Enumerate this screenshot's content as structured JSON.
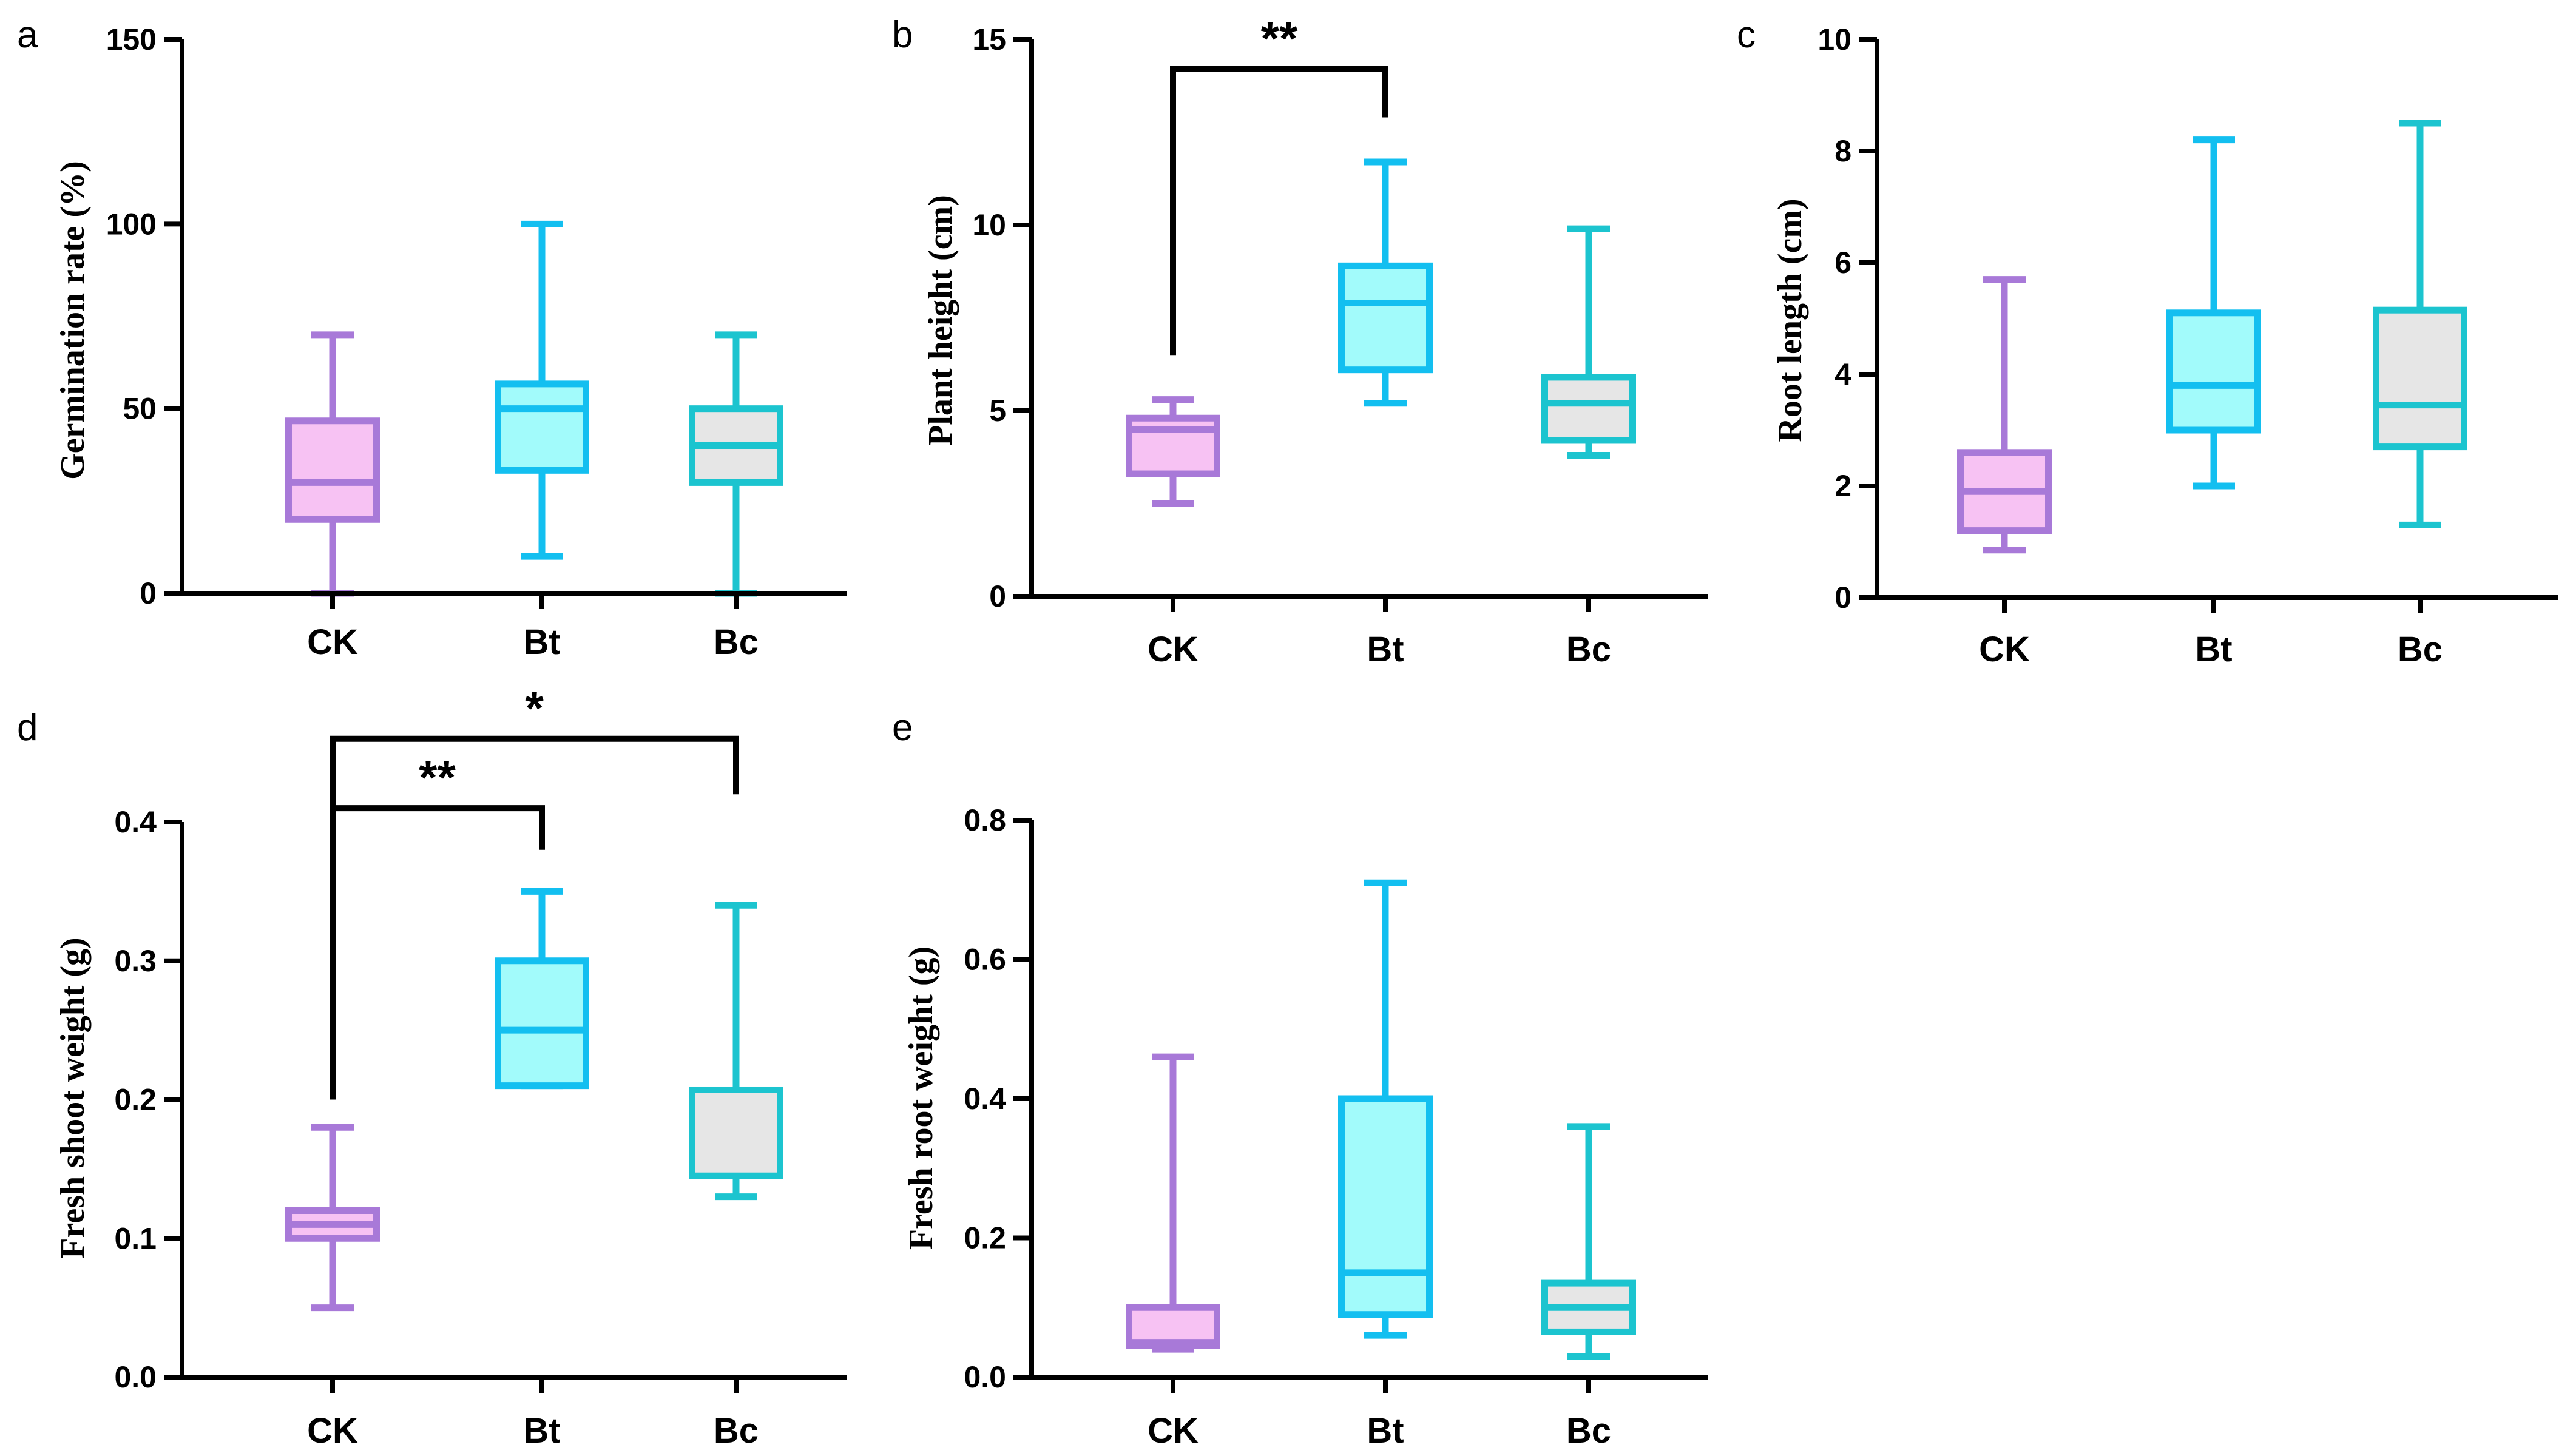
{
  "colors": {
    "CK": {
      "stroke": "#a879d8",
      "fill": "#f7c2f3"
    },
    "Bt": {
      "stroke": "#13bff0",
      "fill": "#a2fbfb"
    },
    "Bc": {
      "stroke": "#1cc4cf",
      "fill": "#e6e6e6"
    },
    "axis": "#000000"
  },
  "chart_data": [
    {
      "panel": "a",
      "type": "box",
      "ylabel": "Germination rate (%)",
      "ylim": [
        0,
        150
      ],
      "yticks": [
        0,
        50,
        100,
        150
      ],
      "categories": [
        "CK",
        "Bt",
        "Bc"
      ],
      "boxes": [
        {
          "name": "CK",
          "min": 0,
          "q1": 20,
          "median": 30,
          "q3": 46.7,
          "max": 70
        },
        {
          "name": "Bt",
          "min": 10,
          "q1": 33.3,
          "median": 50,
          "q3": 56.7,
          "max": 100
        },
        {
          "name": "Bc",
          "min": 0,
          "q1": 30,
          "median": 40,
          "q3": 50,
          "max": 70
        }
      ],
      "significance": []
    },
    {
      "panel": "b",
      "type": "box",
      "ylabel": "Plant height (cm)",
      "ylim": [
        0,
        15
      ],
      "yticks": [
        0,
        5,
        10,
        15
      ],
      "categories": [
        "CK",
        "Bt",
        "Bc"
      ],
      "boxes": [
        {
          "name": "CK",
          "min": 2.5,
          "q1": 3.3,
          "median": 4.5,
          "q3": 4.8,
          "max": 5.3
        },
        {
          "name": "Bt",
          "min": 5.2,
          "q1": 6.1,
          "median": 7.9,
          "q3": 8.9,
          "max": 11.7
        },
        {
          "name": "Bc",
          "min": 3.8,
          "q1": 4.2,
          "median": 5.2,
          "q3": 5.9,
          "max": 9.9
        }
      ],
      "significance": [
        {
          "from": "CK",
          "to": "Bt",
          "label": "**",
          "y": 14.2,
          "y_from": 6.5,
          "y_to": 12.9
        }
      ]
    },
    {
      "panel": "c",
      "type": "box",
      "ylabel": "Root length (cm)",
      "ylim": [
        0,
        10
      ],
      "yticks": [
        0,
        2,
        4,
        6,
        8,
        10
      ],
      "categories": [
        "CK",
        "Bt",
        "Bc"
      ],
      "boxes": [
        {
          "name": "CK",
          "min": 0.85,
          "q1": 1.2,
          "median": 1.9,
          "q3": 2.6,
          "max": 5.7
        },
        {
          "name": "Bt",
          "min": 2.0,
          "q1": 3.0,
          "median": 3.8,
          "q3": 5.1,
          "max": 8.2
        },
        {
          "name": "Bc",
          "min": 1.3,
          "q1": 2.7,
          "median": 3.45,
          "q3": 5.15,
          "max": 8.5
        }
      ],
      "significance": []
    },
    {
      "panel": "d",
      "type": "box",
      "ylabel": "Fresh shoot weight (g)",
      "ylim": [
        0,
        0.4
      ],
      "yticks": [
        0.0,
        0.1,
        0.2,
        0.3,
        0.4
      ],
      "tick_decimals": 1,
      "categories": [
        "CK",
        "Bt",
        "Bc"
      ],
      "boxes": [
        {
          "name": "CK",
          "min": 0.05,
          "q1": 0.1,
          "median": 0.11,
          "q3": 0.12,
          "max": 0.18
        },
        {
          "name": "Bt",
          "min": 0.21,
          "q1": 0.21,
          "median": 0.25,
          "q3": 0.3,
          "max": 0.35
        },
        {
          "name": "Bc",
          "min": 0.13,
          "q1": 0.145,
          "median": 0.145,
          "q3": 0.207,
          "max": 0.34
        }
      ],
      "significance": [
        {
          "from": "CK",
          "to": "Bt",
          "label": "**",
          "y": 0.41,
          "y_from": 0.2,
          "y_to": 0.38
        },
        {
          "from": "CK",
          "to": "Bc",
          "label": "*",
          "y": 0.46,
          "y_from": 0.41,
          "y_to": 0.42
        }
      ]
    },
    {
      "panel": "e",
      "type": "box",
      "ylabel": "Fresh root weight (g)",
      "ylim": [
        0,
        0.8
      ],
      "yticks": [
        0.0,
        0.2,
        0.4,
        0.6,
        0.8
      ],
      "tick_decimals": 1,
      "categories": [
        "CK",
        "Bt",
        "Bc"
      ],
      "boxes": [
        {
          "name": "CK",
          "min": 0.04,
          "q1": 0.045,
          "median": 0.05,
          "q3": 0.1,
          "max": 0.46
        },
        {
          "name": "Bt",
          "min": 0.06,
          "q1": 0.09,
          "median": 0.15,
          "q3": 0.4,
          "max": 0.71
        },
        {
          "name": "Bc",
          "min": 0.03,
          "q1": 0.065,
          "median": 0.1,
          "q3": 0.135,
          "max": 0.36
        }
      ],
      "significance": []
    }
  ]
}
